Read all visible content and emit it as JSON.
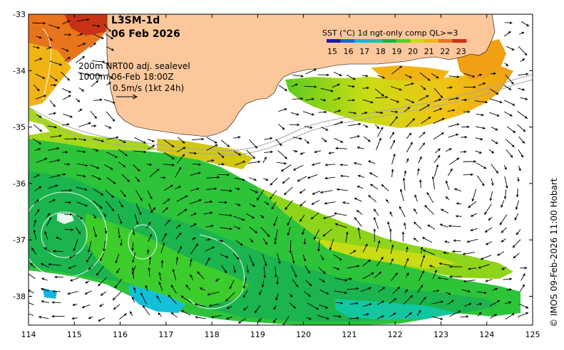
{
  "title": {
    "product": "L3SM-1d",
    "date": "06 Feb 2026"
  },
  "info": {
    "line1": "200m  NRT00 adj. sealevel",
    "line2": "1000m 06-Feb 18:00Z",
    "scale_label": "0.5m/s (1kt 24h)"
  },
  "legend": {
    "title": "SST (°C) 1d ngt-only comp QL>=3",
    "ticks": [
      "15",
      "16",
      "17",
      "18",
      "19",
      "20",
      "21",
      "22",
      "23"
    ],
    "colors": [
      "#1a1aa6",
      "#1466e6",
      "#13b4e6",
      "#13c6a0",
      "#16b43c",
      "#5ccc1e",
      "#c8dc14",
      "#f0b414",
      "#e8741c",
      "#c83214"
    ]
  },
  "axes": {
    "x_ticks": [
      "114",
      "115",
      "116",
      "117",
      "118",
      "119",
      "120",
      "121",
      "122",
      "123",
      "124",
      "125"
    ],
    "y_ticks": [
      "-33",
      "-34",
      "-35",
      "-36",
      "-37",
      "-38"
    ]
  },
  "credit": "© IMOS 09-Feb-2026 11:00 Hobart",
  "colors": {
    "land": "#fcc89b",
    "frame": "#000000",
    "isobath": "#a8a8a8",
    "ssh_contour": "#ffffff"
  }
}
